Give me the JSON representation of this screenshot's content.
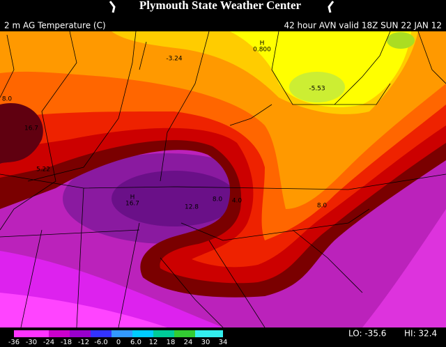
{
  "header": {
    "title": "Plymouth State Weather Center",
    "field": "2 m AG Temperature (C)",
    "valid": "42 hour AVN valid 18Z SUN 22 JAN 12"
  },
  "map_labels": [
    "-3.24",
    "0.800",
    "H",
    "-5.53",
    "8.0",
    "16.7",
    "5.22",
    "H",
    "16.7",
    "12.8",
    "8.0",
    "4.0",
    "8.0"
  ],
  "colorbar": {
    "labels": [
      "-36",
      "-30",
      "-24",
      "-18",
      "-12",
      "-6.0",
      "0",
      "6.0",
      "12",
      "18",
      "24",
      "30",
      "34"
    ]
  },
  "footer": {
    "lo": "LO: -35.6",
    "hi": "HI: 32.4"
  }
}
